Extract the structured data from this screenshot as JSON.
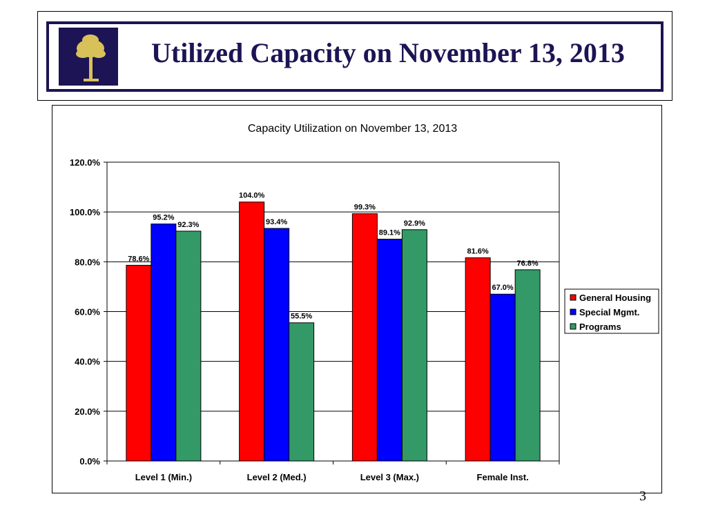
{
  "slide": {
    "title": "Utilized Capacity on November 13, 2013",
    "page_number": "3",
    "logo_icon": "palmetto-crescent-flag-icon",
    "colors": {
      "title": "#1c1454",
      "logo_bg": "#1c1454",
      "logo_fg": "#d9c15a"
    }
  },
  "chart_data": {
    "type": "bar",
    "title": "Capacity Utilization on November 13, 2013",
    "categories": [
      "Level 1 (Min.)",
      "Level 2 (Med.)",
      "Level 3 (Max.)",
      "Female Inst."
    ],
    "series": [
      {
        "name": "General Housing",
        "color": "#ff0000",
        "values": [
          78.6,
          104.0,
          99.3,
          81.6
        ],
        "labels": [
          "78.6%",
          "104.0%",
          "99.3%",
          "81.6%"
        ]
      },
      {
        "name": "Special Mgmt.",
        "color": "#0000ff",
        "values": [
          95.2,
          93.4,
          89.1,
          67.0
        ],
        "labels": [
          "95.2%",
          "93.4%",
          "89.1%",
          "67.0%"
        ]
      },
      {
        "name": "Programs",
        "color": "#339966",
        "values": [
          92.3,
          55.5,
          92.9,
          76.8
        ],
        "labels": [
          "92.3%",
          "55.5%",
          "92.9%",
          "76.8%"
        ]
      }
    ],
    "ylim": [
      0,
      120
    ],
    "yticks": [
      0,
      20,
      40,
      60,
      80,
      100,
      120
    ],
    "ytick_labels": [
      "0.0%",
      "20.0%",
      "40.0%",
      "60.0%",
      "80.0%",
      "100.0%",
      "120.0%"
    ],
    "xlabel": "",
    "ylabel": "",
    "grid": true,
    "legend_position": "right"
  }
}
